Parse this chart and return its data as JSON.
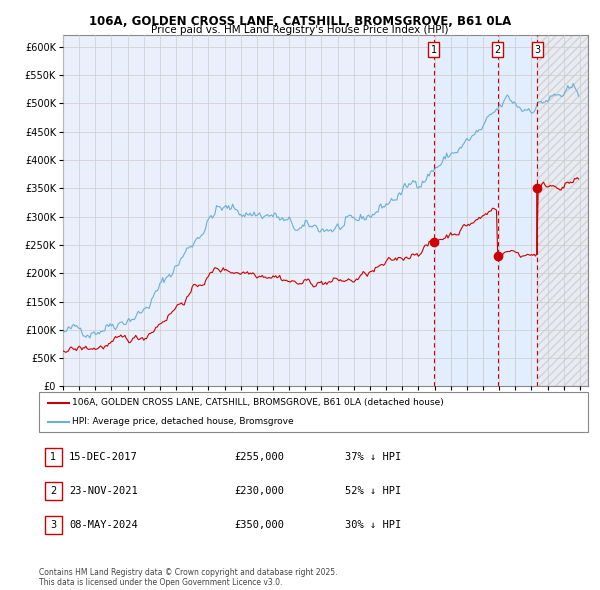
{
  "title_line1": "106A, GOLDEN CROSS LANE, CATSHILL, BROMSGROVE, B61 0LA",
  "title_line2": "Price paid vs. HM Land Registry's House Price Index (HPI)",
  "ylim": [
    0,
    620000
  ],
  "yticks": [
    0,
    50000,
    100000,
    150000,
    200000,
    250000,
    300000,
    350000,
    400000,
    450000,
    500000,
    550000,
    600000
  ],
  "xlim_start": 1995.0,
  "xlim_end": 2027.5,
  "plot_bg": "#eaf0fb",
  "grid_color": "#cccccc",
  "hpi_color": "#6baed6",
  "price_color": "#cc0000",
  "vline_color": "#cc0000",
  "transactions": [
    {
      "num": 1,
      "date_num": 2017.96,
      "price": 255000,
      "label": "1",
      "text": "15-DEC-2017",
      "price_str": "£255,000",
      "hpi_str": "37% ↓ HPI"
    },
    {
      "num": 2,
      "date_num": 2021.9,
      "price": 230000,
      "label": "2",
      "text": "23-NOV-2021",
      "price_str": "£230,000",
      "hpi_str": "52% ↓ HPI"
    },
    {
      "num": 3,
      "date_num": 2024.36,
      "price": 350000,
      "label": "3",
      "text": "08-MAY-2024",
      "price_str": "£350,000",
      "hpi_str": "30% ↓ HPI"
    }
  ],
  "legend_label_price": "106A, GOLDEN CROSS LANE, CATSHILL, BROMSGROVE, B61 0LA (detached house)",
  "legend_label_hpi": "HPI: Average price, detached house, Bromsgrove",
  "footnote": "Contains HM Land Registry data © Crown copyright and database right 2025.\nThis data is licensed under the Open Government Licence v3.0."
}
